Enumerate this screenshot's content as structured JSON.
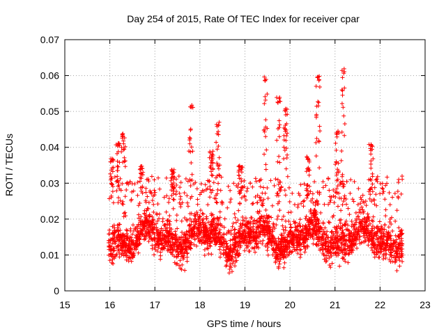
{
  "chart_data": {
    "type": "scatter",
    "title": "Day 254 of 2015, Rate Of TEC Index for receiver cpar",
    "xlabel": "GPS time / hours",
    "ylabel": "ROTI / TECUs",
    "xlim": [
      15,
      23
    ],
    "ylim": [
      0,
      0.07
    ],
    "xticks": [
      15,
      16,
      17,
      18,
      19,
      20,
      21,
      22,
      23
    ],
    "yticks": [
      0,
      0.01,
      0.02,
      0.03,
      0.04,
      0.05,
      0.06,
      0.07
    ],
    "xtick_labels": [
      "15",
      "16",
      "17",
      "18",
      "19",
      "20",
      "21",
      "22",
      "23"
    ],
    "ytick_labels": [
      "0",
      "0.01",
      "0.02",
      "0.03",
      "0.04",
      "0.05",
      "0.06",
      "0.07"
    ],
    "grid": true,
    "marker": "plus",
    "series_color": "#ff0000",
    "x_range": [
      15.97,
      22.5
    ],
    "baseline_band": [
      0.005,
      0.025
    ],
    "spikes": [
      {
        "x": 16.05,
        "y": 0.037
      },
      {
        "x": 16.18,
        "y": 0.042
      },
      {
        "x": 16.3,
        "y": 0.044
      },
      {
        "x": 16.7,
        "y": 0.035
      },
      {
        "x": 17.4,
        "y": 0.034
      },
      {
        "x": 17.8,
        "y": 0.052
      },
      {
        "x": 18.25,
        "y": 0.039
      },
      {
        "x": 18.4,
        "y": 0.047
      },
      {
        "x": 18.9,
        "y": 0.035
      },
      {
        "x": 19.45,
        "y": 0.06
      },
      {
        "x": 19.75,
        "y": 0.054
      },
      {
        "x": 19.9,
        "y": 0.051
      },
      {
        "x": 20.4,
        "y": 0.038
      },
      {
        "x": 20.62,
        "y": 0.06
      },
      {
        "x": 21.05,
        "y": 0.045
      },
      {
        "x": 21.18,
        "y": 0.062
      },
      {
        "x": 21.8,
        "y": 0.041
      }
    ]
  }
}
